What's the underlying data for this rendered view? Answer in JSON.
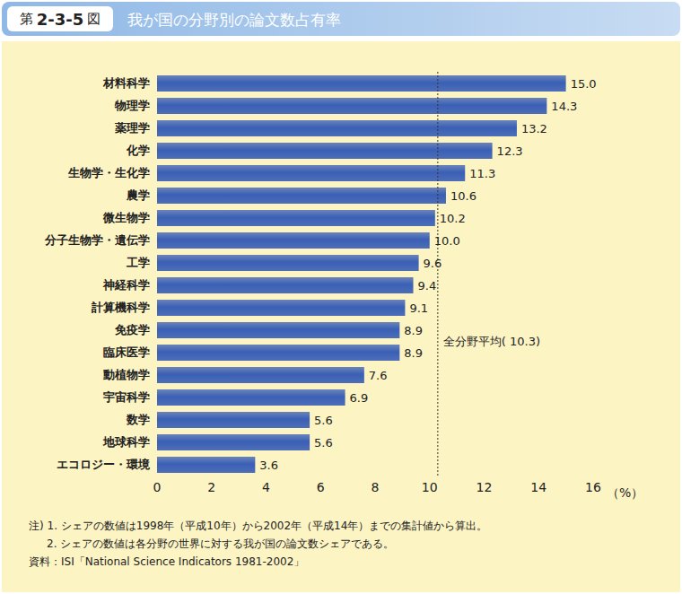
{
  "chart_data": {
    "type": "bar",
    "figure_label": [
      "第",
      "2-3-5",
      "図"
    ],
    "title": "我が国の分野別の論文数占有率",
    "orientation": "horizontal",
    "categories": [
      "材料科学",
      "物理学",
      "薬理学",
      "化学",
      "生物学・生化学",
      "農学",
      "微生物学",
      "分子生物学・遺伝学",
      "工学",
      "神経科学",
      "計算機科学",
      "免疫学",
      "臨床医学",
      "動植物学",
      "宇宙科学",
      "数学",
      "地球科学",
      "エコロジー・環境"
    ],
    "values": [
      15.0,
      14.3,
      13.2,
      12.3,
      11.3,
      10.6,
      10.2,
      10.0,
      9.6,
      9.4,
      9.1,
      8.9,
      8.9,
      7.6,
      6.9,
      5.6,
      5.6,
      3.6
    ],
    "value_labels": [
      "15.0",
      "14.3",
      "13.2",
      "12.3",
      "11.3",
      "10.6",
      "10.2",
      "10.0",
      "9.6",
      "9.4",
      "9.1",
      "8.9",
      "8.9",
      "7.6",
      "6.9",
      "5.6",
      "5.6",
      "3.6"
    ],
    "color": "#3a5fb5",
    "data_labels": true,
    "grid": false,
    "xlim": [
      0,
      16
    ],
    "xticks": [
      0,
      2,
      4,
      6,
      8,
      10,
      12,
      14,
      16
    ],
    "x_label": "（%）",
    "average": {
      "value": 10.3,
      "label": "全分野平均( 10.3)"
    },
    "notes": [
      "注) 1. シェアの数値は1998年（平成10年）から2002年（平成14年）までの集計値から算出。",
      "2. シェアの数値は各分野の世界に対する我が国の論文数シェアである。"
    ],
    "source": "資料：ISI「National Science Indicators 1981-2002」"
  }
}
